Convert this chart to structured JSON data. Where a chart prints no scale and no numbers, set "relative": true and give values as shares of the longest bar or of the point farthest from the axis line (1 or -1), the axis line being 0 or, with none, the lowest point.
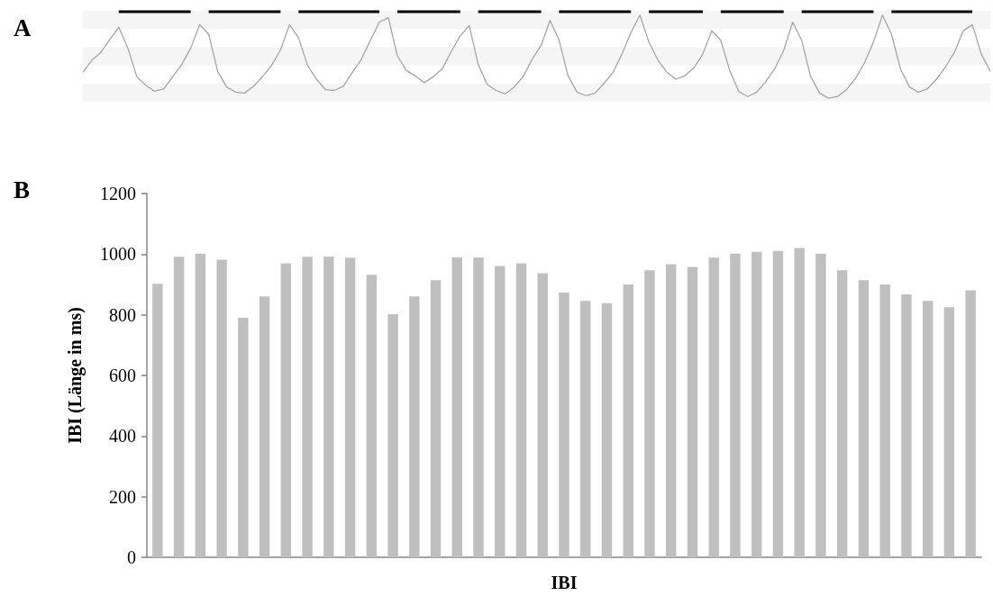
{
  "chart_data": [
    {
      "type": "line",
      "title": "A",
      "relative": true,
      "marker": "none",
      "bands": [
        {
          "axis": "y",
          "from": -0.04,
          "to": 0.17,
          "color": "#f5f5f5"
        },
        {
          "axis": "y",
          "from": 0.38,
          "to": 0.59,
          "color": "#f5f5f5"
        },
        {
          "axis": "y",
          "from": 0.8,
          "to": 1.01,
          "color": "#f5f5f5"
        }
      ],
      "categories": [
        null,
        null,
        null,
        null,
        null,
        null,
        null,
        null,
        null,
        null,
        null,
        null,
        null,
        null,
        null,
        null,
        null,
        null,
        null,
        null,
        null,
        null,
        null,
        null,
        null,
        null,
        null,
        null,
        null,
        null,
        null,
        null,
        null,
        null,
        null,
        null,
        null,
        null,
        null,
        null,
        null,
        null,
        null,
        null,
        null,
        null,
        null,
        null,
        null,
        null,
        null,
        null,
        null,
        null,
        null,
        null,
        null,
        null,
        null,
        null,
        null,
        null,
        null,
        null,
        null,
        null,
        null,
        null,
        null,
        null,
        null,
        null,
        null,
        null,
        null,
        null,
        null,
        null,
        null,
        null,
        null,
        null,
        null,
        null,
        null,
        null,
        null,
        null,
        null,
        null,
        null,
        null,
        null,
        null,
        null,
        null,
        null,
        null,
        null,
        null,
        null,
        null
      ],
      "series": [
        {
          "color": "#a6a6a6",
          "values": [
            0.3,
            0.44,
            0.53,
            0.68,
            0.82,
            0.58,
            0.25,
            0.15,
            0.08,
            0.11,
            0.25,
            0.39,
            0.58,
            0.85,
            0.74,
            0.31,
            0.13,
            0.07,
            0.06,
            0.14,
            0.25,
            0.38,
            0.56,
            0.85,
            0.7,
            0.38,
            0.22,
            0.1,
            0.09,
            0.14,
            0.3,
            0.45,
            0.67,
            0.88,
            0.93,
            0.49,
            0.32,
            0.26,
            0.18,
            0.25,
            0.34,
            0.54,
            0.72,
            0.84,
            0.39,
            0.16,
            0.09,
            0.05,
            0.13,
            0.25,
            0.45,
            0.61,
            0.9,
            0.67,
            0.26,
            0.07,
            0.03,
            0.06,
            0.17,
            0.3,
            0.51,
            0.76,
            0.96,
            0.65,
            0.44,
            0.3,
            0.22,
            0.26,
            0.35,
            0.51,
            0.78,
            0.67,
            0.32,
            0.08,
            0.02,
            0.07,
            0.19,
            0.34,
            0.55,
            0.88,
            0.67,
            0.25,
            0.06,
            0,
            0.02,
            0.1,
            0.23,
            0.41,
            0.65,
            0.96,
            0.74,
            0.34,
            0.13,
            0.07,
            0.11,
            0.22,
            0.36,
            0.53,
            0.78,
            0.85,
            0.51,
            0.31
          ]
        },
        {
          "color": "#000000",
          "values": [
            null,
            null,
            null,
            null,
            1,
            1,
            1,
            1,
            1,
            1,
            1,
            1,
            1,
            null,
            1,
            1,
            1,
            1,
            1,
            1,
            1,
            1,
            1,
            null,
            1,
            1,
            1,
            1,
            1,
            1,
            1,
            1,
            1,
            1,
            null,
            1,
            1,
            1,
            1,
            1,
            1,
            1,
            1,
            null,
            1,
            1,
            1,
            1,
            1,
            1,
            1,
            1,
            null,
            1,
            1,
            1,
            1,
            1,
            1,
            1,
            1,
            1,
            null,
            1,
            1,
            1,
            1,
            1,
            1,
            1,
            null,
            1,
            1,
            1,
            1,
            1,
            1,
            1,
            1,
            null,
            1,
            1,
            1,
            1,
            1,
            1,
            1,
            1,
            1,
            null,
            1,
            1,
            1,
            1,
            1,
            1,
            1,
            1,
            1,
            1,
            null,
            null
          ]
        }
      ]
    },
    {
      "type": "bar",
      "title": "B",
      "xlabel": "IBI",
      "ylabel": "IBI (Länge in ms)",
      "color": "#bfbfbf",
      "categories": [
        null,
        null,
        null,
        null,
        null,
        null,
        null,
        null,
        null,
        null,
        null,
        null,
        null,
        null,
        null,
        null,
        null,
        null,
        null,
        null,
        null,
        null,
        null,
        null,
        null,
        null,
        null,
        null,
        null,
        null,
        null,
        null,
        null,
        null,
        null,
        null,
        null,
        null,
        null
      ],
      "values": [
        902,
        991,
        1002,
        982,
        790,
        861,
        970,
        991,
        992,
        988,
        932,
        802,
        861,
        914,
        990,
        989,
        961,
        970,
        937,
        873,
        846,
        838,
        900,
        947,
        967,
        958,
        988,
        1002,
        1008,
        1011,
        1020,
        1002,
        947,
        914,
        900,
        867,
        846,
        825,
        881
      ],
      "ylim": [
        0,
        1200
      ],
      "yticks": [
        0,
        200,
        400,
        600,
        800,
        1000,
        1200
      ]
    }
  ]
}
